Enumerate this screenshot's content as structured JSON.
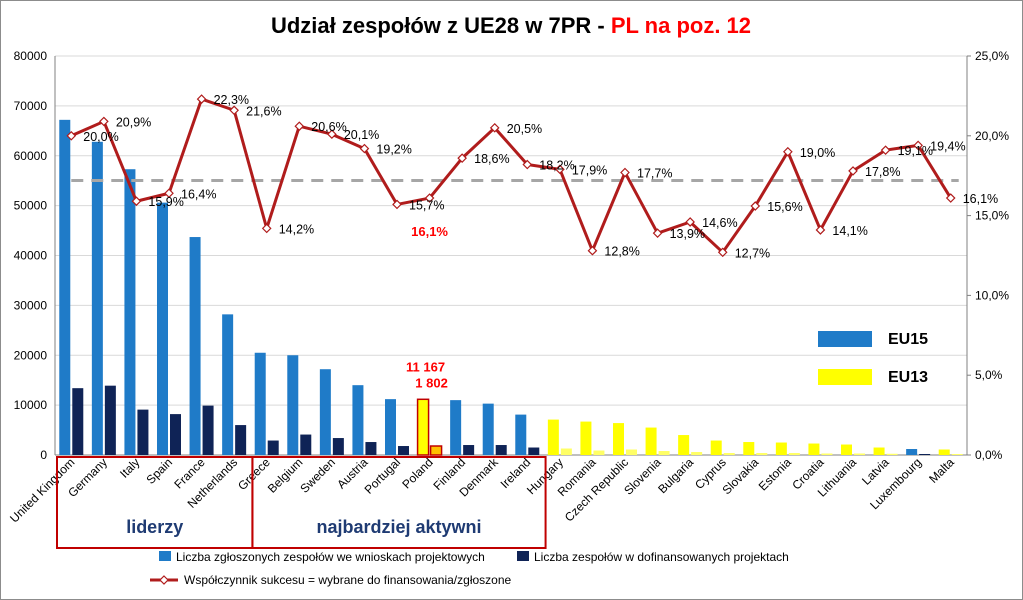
{
  "chart_data": {
    "type": "bar",
    "title": "Udział zespołów z UE28 w 7PR - ",
    "title_highlight": "PL na poz. 12",
    "categories": [
      "United Kingdom",
      "Germany",
      "Italy",
      "Spain",
      "France",
      "Netherlands",
      "Greece",
      "Belgium",
      "Sweden",
      "Austria",
      "Portugal",
      "Poland",
      "Finland",
      "Denmark",
      "Ireland",
      "Hungary",
      "Romania",
      "Czech Republic",
      "Slovenia",
      "Bulgaria",
      "Cyprus",
      "Slovakia",
      "Estonia",
      "Croatia",
      "Lithuania",
      "Latvia",
      "Luxembourg",
      "Malta"
    ],
    "group": [
      "EU15",
      "EU15",
      "EU15",
      "EU15",
      "EU15",
      "EU15",
      "EU15",
      "EU15",
      "EU15",
      "EU15",
      "EU15",
      "EU15",
      "EU15",
      "EU15",
      "EU15",
      "EU13",
      "EU13",
      "EU13",
      "EU13",
      "EU13",
      "EU13",
      "EU13",
      "EU13",
      "EU13",
      "EU13",
      "EU13",
      "EU15",
      "EU13"
    ],
    "series": [
      {
        "name": "Liczba zgłoszonych zespołów we wnioskach projektowych",
        "axis": "left",
        "kind": "bar",
        "values": [
          67200,
          62800,
          57300,
          50600,
          43700,
          28200,
          20500,
          20000,
          17200,
          14000,
          11200,
          11167,
          11000,
          10300,
          8100,
          7100,
          6700,
          6400,
          5500,
          4000,
          2900,
          2600,
          2500,
          2300,
          2100,
          1500,
          1200,
          1100
        ]
      },
      {
        "name": "Liczba zespołów w dofinansowanych projektach",
        "axis": "left",
        "kind": "bar",
        "values": [
          13400,
          13900,
          9100,
          8200,
          9900,
          6000,
          2900,
          4100,
          3400,
          2600,
          1800,
          1802,
          2000,
          2000,
          1500,
          1300,
          900,
          1100,
          800,
          600,
          400,
          400,
          400,
          300,
          300,
          250,
          200,
          200
        ]
      },
      {
        "name": "Współczynnik sukcesu = wybrane do finansowania/zgłoszone",
        "axis": "right",
        "kind": "line",
        "values": [
          20.0,
          20.9,
          15.9,
          16.4,
          22.3,
          21.6,
          14.2,
          20.6,
          20.1,
          19.2,
          15.7,
          16.1,
          18.6,
          20.5,
          18.2,
          17.9,
          12.8,
          17.7,
          13.9,
          14.6,
          12.7,
          15.6,
          19.0,
          14.1,
          17.8,
          19.1,
          19.4,
          16.1
        ]
      }
    ],
    "value_labels": [
      "20,0%",
      "20,9%",
      "15,9%",
      "16,4%",
      "22,3%",
      "21,6%",
      "14,2%",
      "20,6%",
      "20,1%",
      "19,2%",
      "15,7%",
      "16,1%",
      "18,6%",
      "20,5%",
      "18,2%",
      "17,9%",
      "12,8%",
      "17,7%",
      "13,9%",
      "14,6%",
      "12,7%",
      "15,6%",
      "19,0%",
      "14,1%",
      "17,8%",
      "19,1%",
      "19,4%",
      "16,1%"
    ],
    "average_line": 17.2,
    "y_left": {
      "range": [
        0,
        80000
      ],
      "ticks": [
        "0",
        "10000",
        "20000",
        "30000",
        "40000",
        "50000",
        "60000",
        "70000",
        "80000"
      ]
    },
    "y_right": {
      "range": [
        0,
        25
      ],
      "ticks": [
        "0,0%",
        "5,0%",
        "10,0%",
        "15,0%",
        "20,0%",
        "25,0%"
      ]
    },
    "grid": true,
    "highlight": {
      "category": "Poland",
      "labels": [
        "11 167",
        "1 802"
      ]
    },
    "groups": [
      {
        "label": "liderzy",
        "from": 0,
        "to": 5
      },
      {
        "label": "najbardziej aktywni",
        "from": 6,
        "to": 14
      }
    ],
    "legend_inset": [
      {
        "label": "EU15",
        "color": "#1f7bc8"
      },
      {
        "label": "EU13",
        "color": "#ffff00"
      }
    ],
    "legend": [
      {
        "label": "Liczba zgłoszonych zespołów we wnioskach projektowych",
        "color": "#1f7bc8",
        "shape": "bar"
      },
      {
        "label": "Liczba zespołów w dofinansowanych projektach",
        "color": "#0f2356",
        "shape": "bar"
      },
      {
        "label": "Współczynnik sukcesu = wybrane do finansowania/zgłoszone",
        "color": "#b01c1c",
        "shape": "line"
      }
    ],
    "colors": {
      "eu15_submitted": "#1f7bc8",
      "eu15_funded": "#0f2356",
      "eu13_submitted": "#ffff00",
      "eu13_funded": "#ffff66",
      "line": "#b01c1c",
      "average": "#a6a6a6",
      "highlight_border": "#c00000"
    }
  }
}
